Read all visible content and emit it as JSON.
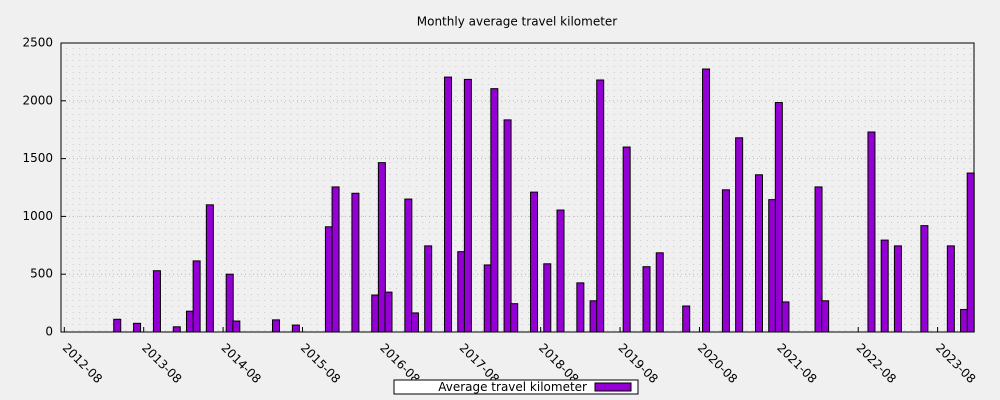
{
  "chart_data": {
    "type": "bar",
    "title": "Monthly average travel kilometer",
    "categories": [
      "2012-08",
      null,
      null,
      null,
      null,
      null,
      null,
      null,
      null,
      null,
      null,
      null,
      "2013-08",
      null,
      null,
      null,
      null,
      null,
      null,
      null,
      null,
      null,
      null,
      null,
      "2014-08",
      null,
      null,
      null,
      null,
      null,
      null,
      null,
      null,
      null,
      null,
      null,
      "2015-08",
      null,
      null,
      null,
      null,
      null,
      null,
      null,
      null,
      null,
      null,
      null,
      "2016-08",
      null,
      null,
      null,
      null,
      null,
      null,
      null,
      null,
      null,
      null,
      null,
      "2017-08",
      null,
      null,
      null,
      null,
      null,
      null,
      null,
      null,
      null,
      null,
      null,
      "2018-08",
      null,
      null,
      null,
      null,
      null,
      null,
      null,
      null,
      null,
      null,
      null,
      "2019-08",
      null,
      null,
      null,
      null,
      null,
      null,
      null,
      null,
      null,
      null,
      null,
      "2020-08",
      null,
      null,
      null,
      null,
      null,
      null,
      null,
      null,
      null,
      null,
      null,
      "2021-08",
      null,
      null,
      null,
      null,
      null,
      null,
      null,
      null,
      null,
      null,
      null,
      "2022-08",
      null,
      null,
      null,
      null,
      null,
      null,
      null,
      null,
      null,
      null,
      null,
      "2023-08",
      null,
      null,
      null,
      null,
      null
    ],
    "series": [
      {
        "name": "Average travel kilometer",
        "color": "#9400d3",
        "values": [
          0,
          0,
          0,
          0,
          0,
          0,
          0,
          0,
          110,
          0,
          0,
          75,
          0,
          0,
          530,
          0,
          0,
          45,
          0,
          180,
          615,
          0,
          1100,
          0,
          0,
          500,
          95,
          0,
          0,
          0,
          0,
          0,
          105,
          0,
          0,
          60,
          0,
          0,
          0,
          0,
          910,
          1255,
          0,
          0,
          1200,
          0,
          0,
          320,
          1465,
          345,
          0,
          0,
          1150,
          165,
          0,
          745,
          0,
          0,
          2205,
          0,
          695,
          2185,
          0,
          0,
          580,
          2105,
          0,
          1835,
          245,
          0,
          0,
          1210,
          0,
          590,
          0,
          1055,
          0,
          0,
          425,
          0,
          270,
          2180,
          0,
          0,
          0,
          1600,
          0,
          0,
          565,
          0,
          685,
          0,
          0,
          0,
          225,
          0,
          0,
          2275,
          0,
          0,
          1230,
          0,
          1680,
          0,
          0,
          1360,
          0,
          1145,
          1985,
          260,
          0,
          0,
          0,
          0,
          1255,
          270,
          0,
          0,
          0,
          0,
          0,
          0,
          1730,
          0,
          795,
          0,
          745,
          0,
          0,
          0,
          920,
          0,
          0,
          0,
          745,
          0,
          195,
          1375
        ]
      }
    ],
    "ylim": [
      0,
      2500
    ],
    "yticks": [
      0,
      500,
      1000,
      1500,
      2000,
      2500
    ],
    "grid": true,
    "legend": "bottom"
  }
}
